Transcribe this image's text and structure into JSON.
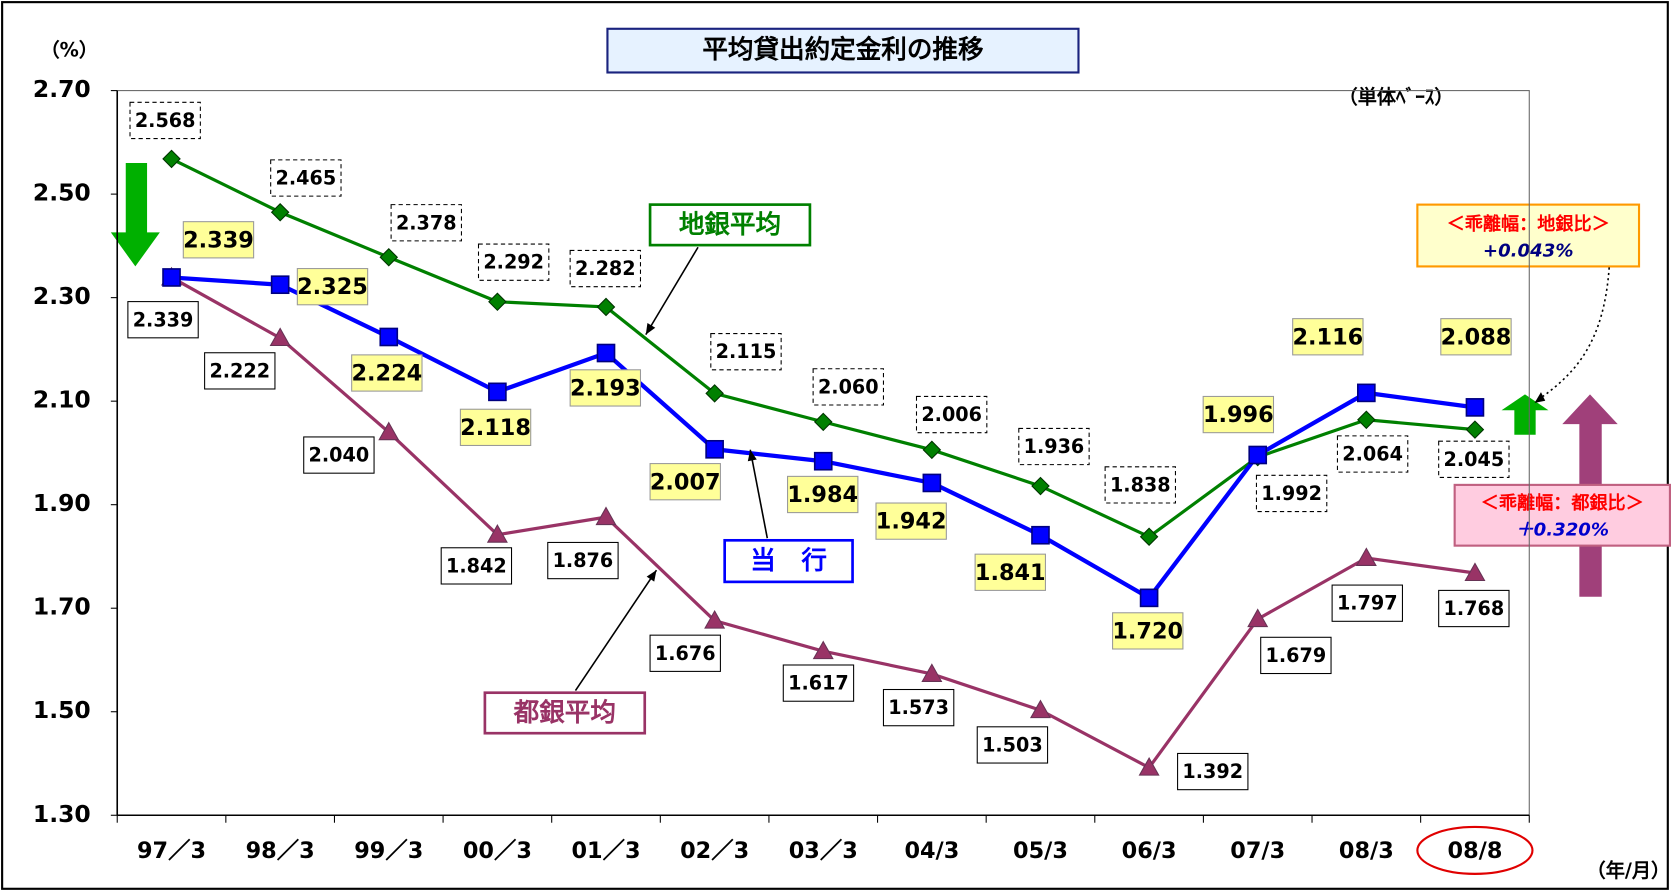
{
  "chart_data": {
    "type": "line",
    "title": "平均貸出約定金利の推移",
    "y_unit": "（%）",
    "note": "（単体ﾍﾞｰｽ）",
    "x_unit": "（年/月）",
    "categories": [
      "97／3",
      "98／3",
      "99／3",
      "00／3",
      "01／3",
      "02／3",
      "03／3",
      "04/3",
      "05/3",
      "06/3",
      "07/3",
      "08/3",
      "08/8"
    ],
    "ylim": [
      1.3,
      2.7
    ],
    "yticks": [
      {
        "value": 1.3,
        "label": "1.30"
      },
      {
        "value": 1.5,
        "label": "1.50"
      },
      {
        "value": 1.7,
        "label": "1.70"
      },
      {
        "value": 1.9,
        "label": "1.90"
      },
      {
        "value": 2.1,
        "label": "2.10"
      },
      {
        "value": 2.3,
        "label": "2.30"
      },
      {
        "value": 2.5,
        "label": "2.50"
      },
      {
        "value": 2.7,
        "label": "2.70"
      }
    ],
    "series": [
      {
        "name": "地銀平均",
        "color": "#008000",
        "marker": "diamond",
        "values": [
          2.568,
          2.465,
          2.378,
          2.292,
          2.282,
          2.115,
          2.06,
          2.006,
          1.936,
          1.838,
          1.992,
          2.064,
          2.045
        ],
        "value_labels": [
          "2.568",
          "2.465",
          "2.378",
          "2.292",
          "2.282",
          "2.115",
          "2.060",
          "2.006",
          "1.936",
          "1.838",
          "1.992",
          "2.064",
          "2.045"
        ]
      },
      {
        "name": "当　行",
        "color": "#0000ff",
        "marker": "square",
        "values": [
          2.339,
          2.325,
          2.224,
          2.118,
          2.193,
          2.007,
          1.984,
          1.942,
          1.841,
          1.72,
          1.996,
          2.116,
          2.088
        ],
        "value_labels": [
          "2.339",
          "2.325",
          "2.224",
          "2.118",
          "2.193",
          "2.007",
          "1.984",
          "1.942",
          "1.841",
          "1.720",
          "1.996",
          "2.116",
          "2.088"
        ]
      },
      {
        "name": "都銀平均",
        "color": "#993366",
        "marker": "triangle",
        "values": [
          2.339,
          2.222,
          2.04,
          1.842,
          1.876,
          1.676,
          1.617,
          1.573,
          1.503,
          1.392,
          1.679,
          1.797,
          1.768
        ],
        "value_labels": [
          "2.339",
          "2.222",
          "2.040",
          "1.842",
          "1.876",
          "1.676",
          "1.617",
          "1.573",
          "1.503",
          "1.392",
          "1.679",
          "1.797",
          "1.768"
        ]
      }
    ],
    "annotations": [
      {
        "label": "＜乖離幅：地銀比＞",
        "value_text": "+0.043%"
      },
      {
        "label": "＜乖離幅：都銀比＞",
        "value_text": "＋0.320%"
      }
    ]
  }
}
